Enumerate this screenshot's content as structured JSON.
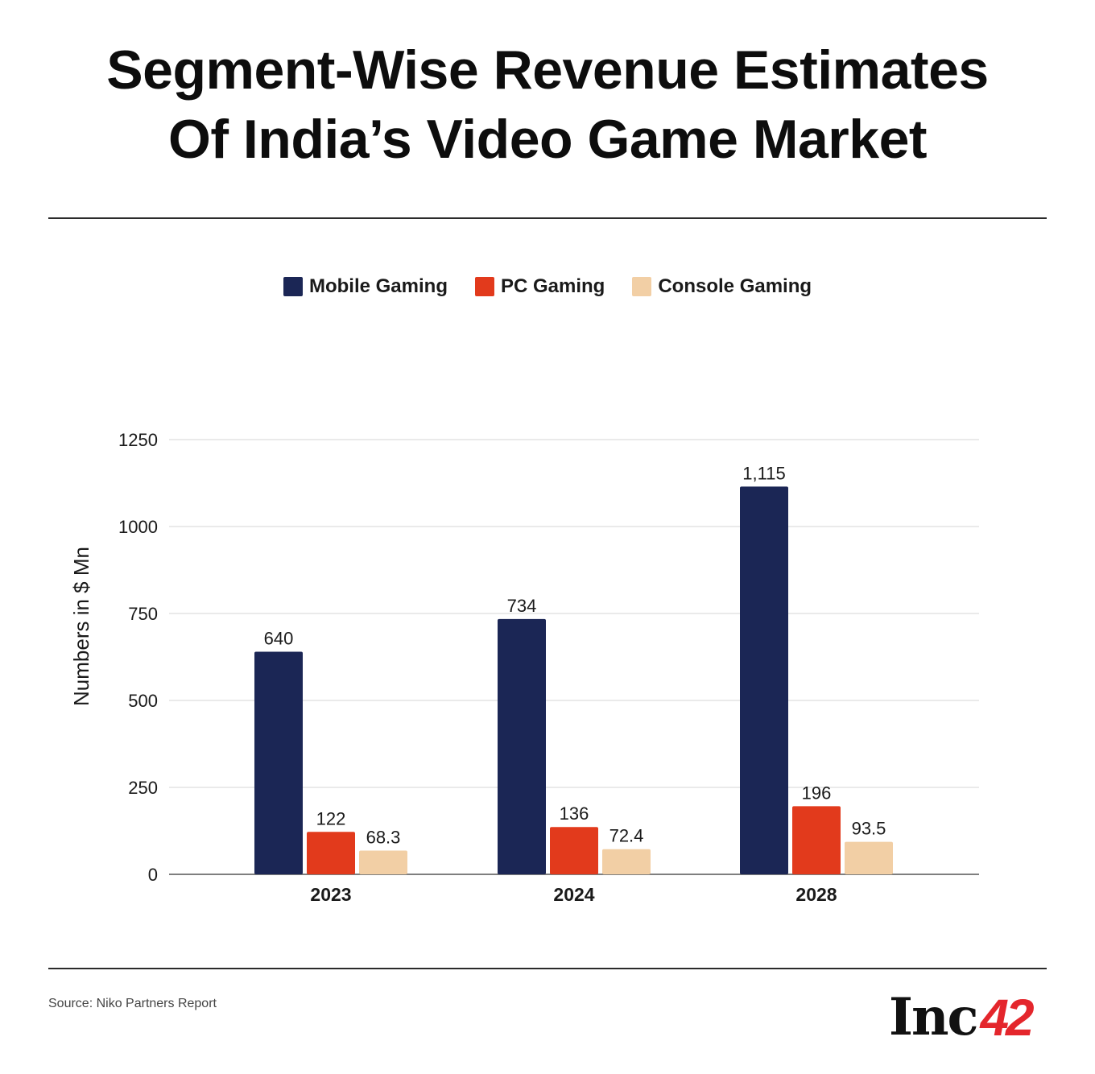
{
  "title_line1": "Segment-Wise Revenue Estimates",
  "title_line2": "Of India’s Video Game Market",
  "source": "Source: Niko Partners Report",
  "logo": {
    "text": "Inc",
    "number": "42"
  },
  "colors": {
    "mobile": "#1b2655",
    "pc": "#e23a1c",
    "console": "#f2cfa5",
    "brand_red": "#e4262c"
  },
  "chart_data": {
    "type": "bar",
    "categories": [
      "2023",
      "2024",
      "2028"
    ],
    "series": [
      {
        "name": "Mobile Gaming",
        "values": [
          640,
          734,
          1115
        ],
        "labels": [
          "640",
          "734",
          "1,115"
        ],
        "color": "#1b2655"
      },
      {
        "name": "PC Gaming",
        "values": [
          122,
          136,
          196
        ],
        "labels": [
          "122",
          "136",
          "196"
        ],
        "color": "#e23a1c"
      },
      {
        "name": "Console Gaming",
        "values": [
          68.3,
          72.4,
          93.5
        ],
        "labels": [
          "68.3",
          "72.4",
          "93.5"
        ],
        "color": "#f2cfa5"
      }
    ],
    "ylabel": "Numbers in $ Mn",
    "xlabel": "",
    "ylim": [
      0,
      1250
    ],
    "yticks": [
      0,
      250,
      500,
      750,
      1000,
      1250
    ],
    "grid": true,
    "legend": "top-center"
  }
}
